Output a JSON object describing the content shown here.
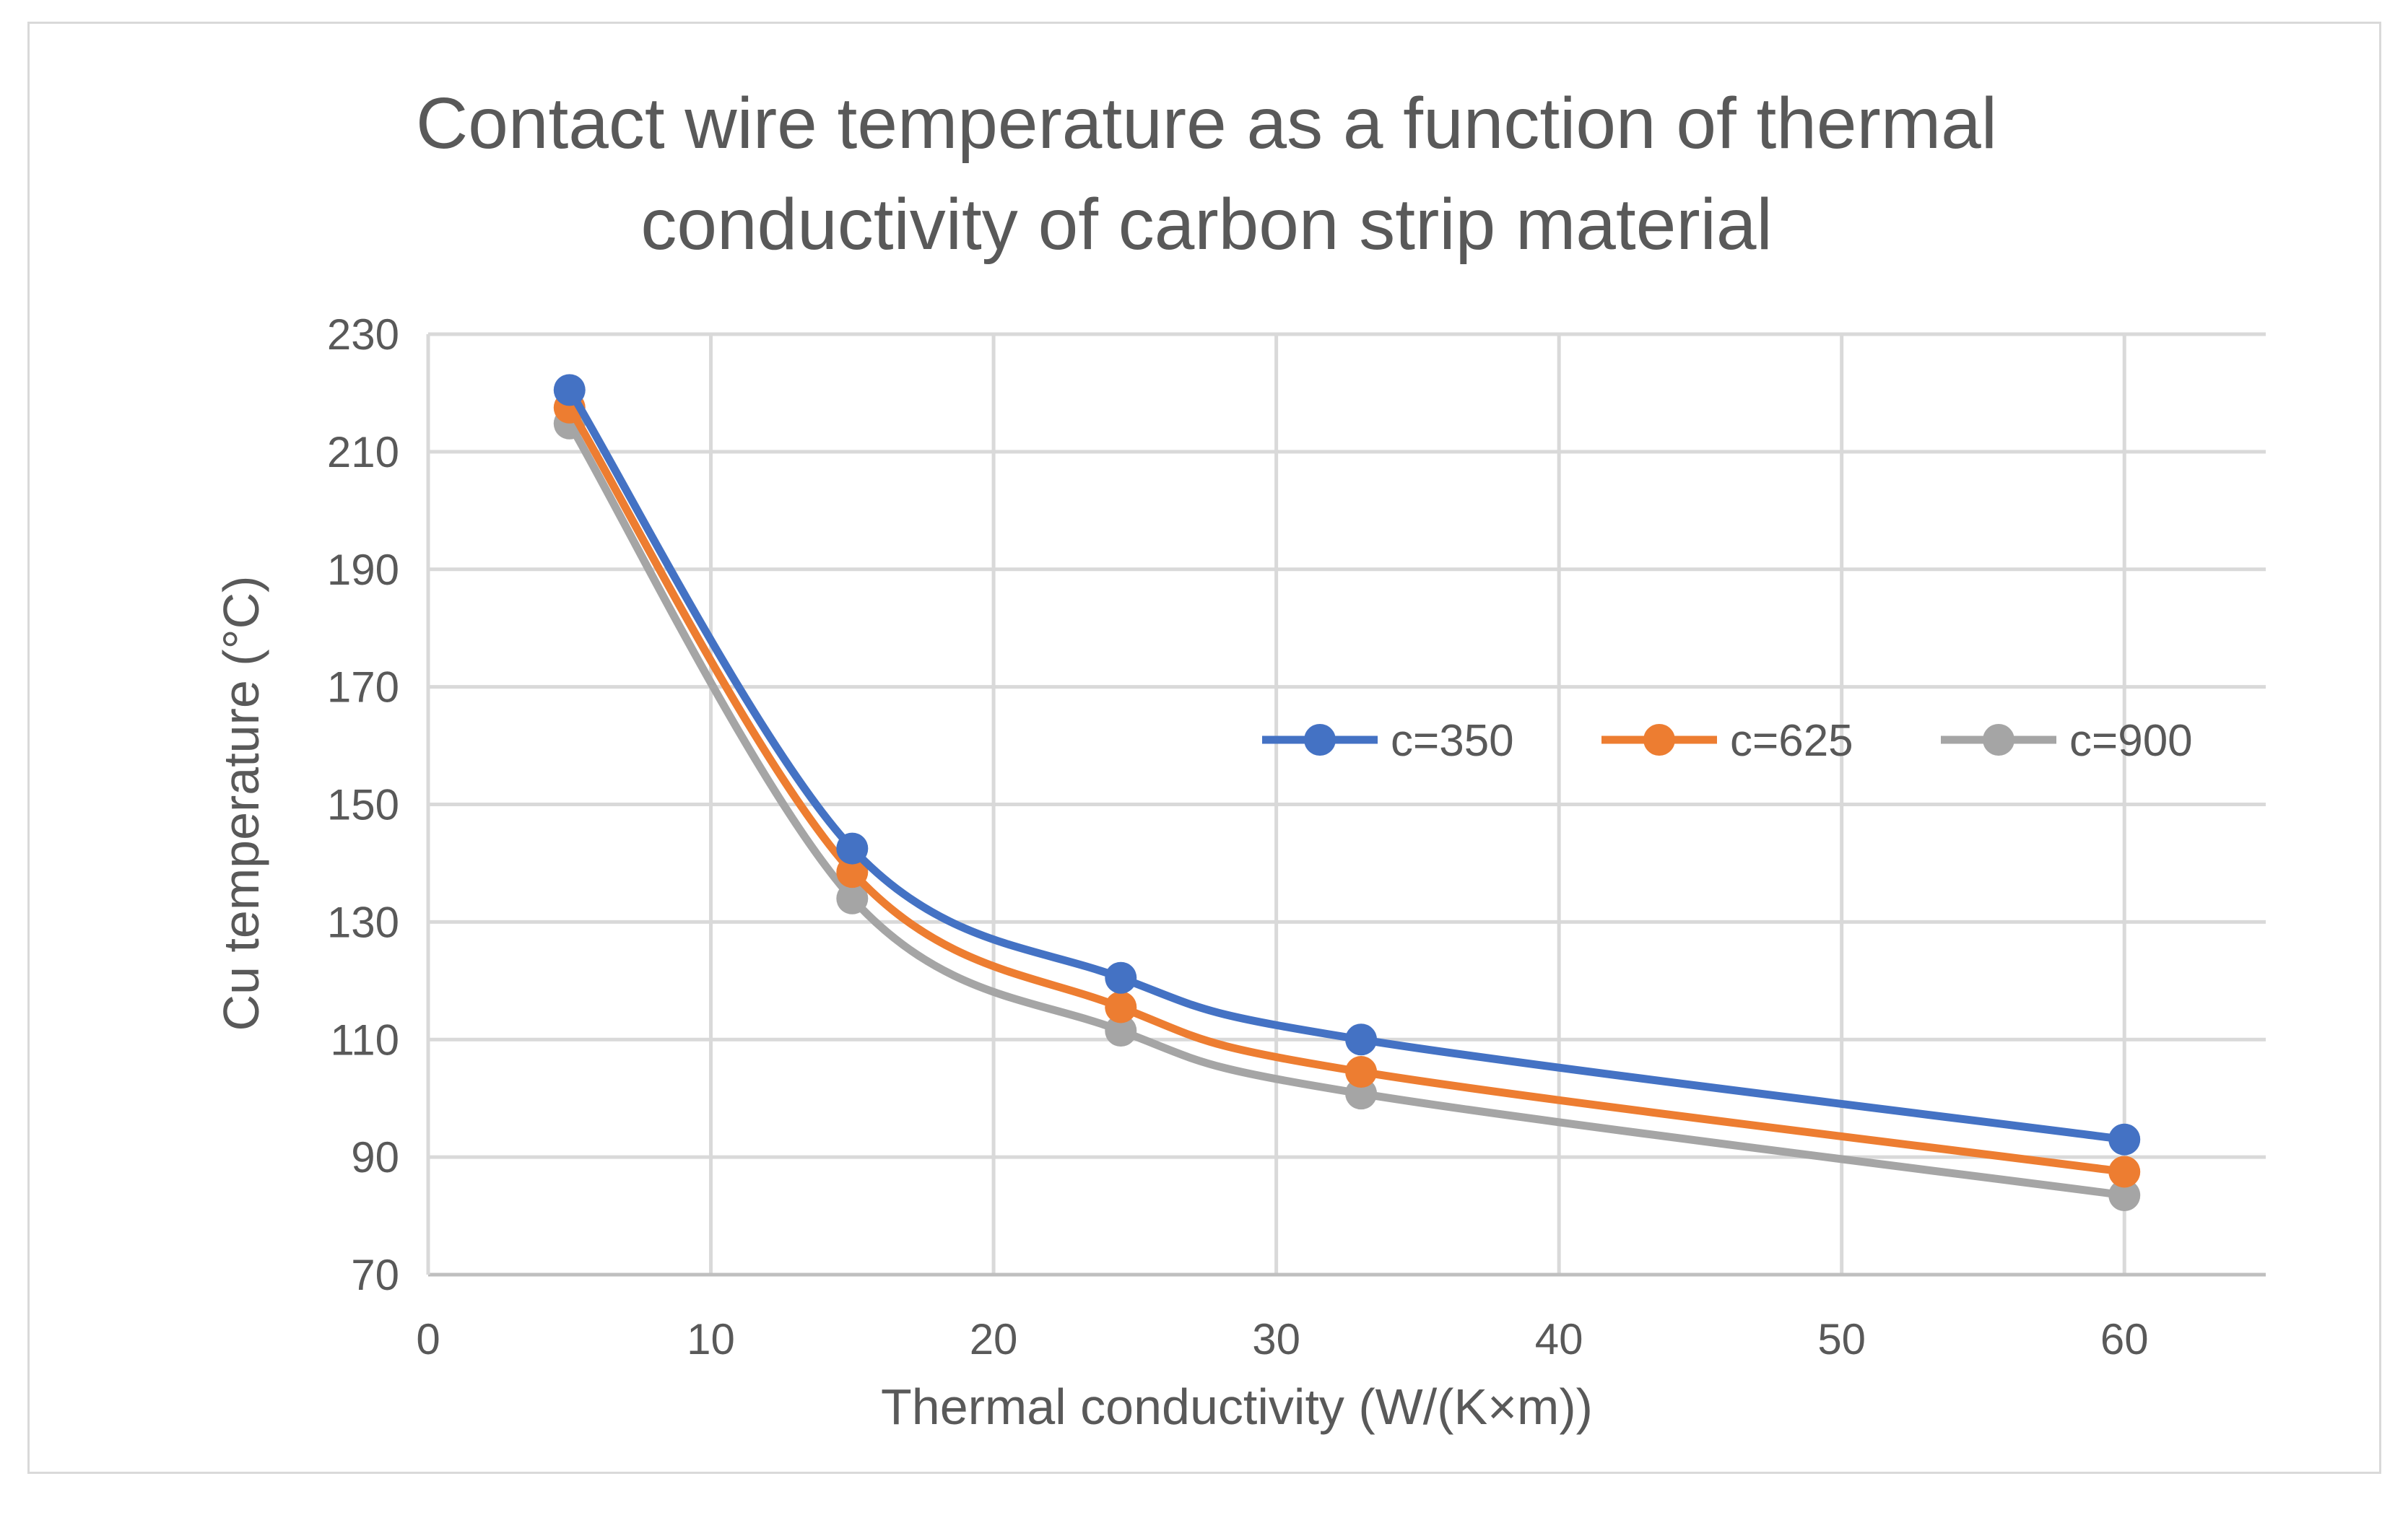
{
  "chart_data": {
    "type": "line",
    "title_lines": [
      "Contact wire temperature as a function of thermal",
      "conductivity of carbon strip material"
    ],
    "xlabel": "Thermal conductivity (W/(K×m))",
    "ylabel": "Cu temperature (°C)",
    "xlim": [
      0,
      65
    ],
    "ylim": [
      70,
      230
    ],
    "x_ticks": [
      0,
      10,
      20,
      30,
      40,
      50,
      60
    ],
    "y_ticks": [
      70,
      90,
      110,
      130,
      150,
      170,
      190,
      210,
      230
    ],
    "x": [
      5,
      15,
      24.5,
      33,
      60
    ],
    "series": [
      {
        "name": "c=350",
        "color": "#4472C4",
        "values": [
          220.5,
          142.5,
          120.5,
          110,
          93
        ]
      },
      {
        "name": "c=625",
        "color": "#ED7D31",
        "values": [
          217.5,
          138.5,
          115.5,
          104.5,
          87.5
        ]
      },
      {
        "name": "c=900",
        "color": "#A5A5A5",
        "values": [
          214.8,
          134,
          111.5,
          100.8,
          83.5
        ]
      }
    ],
    "grid": true,
    "legend_position": "inside-right"
  }
}
